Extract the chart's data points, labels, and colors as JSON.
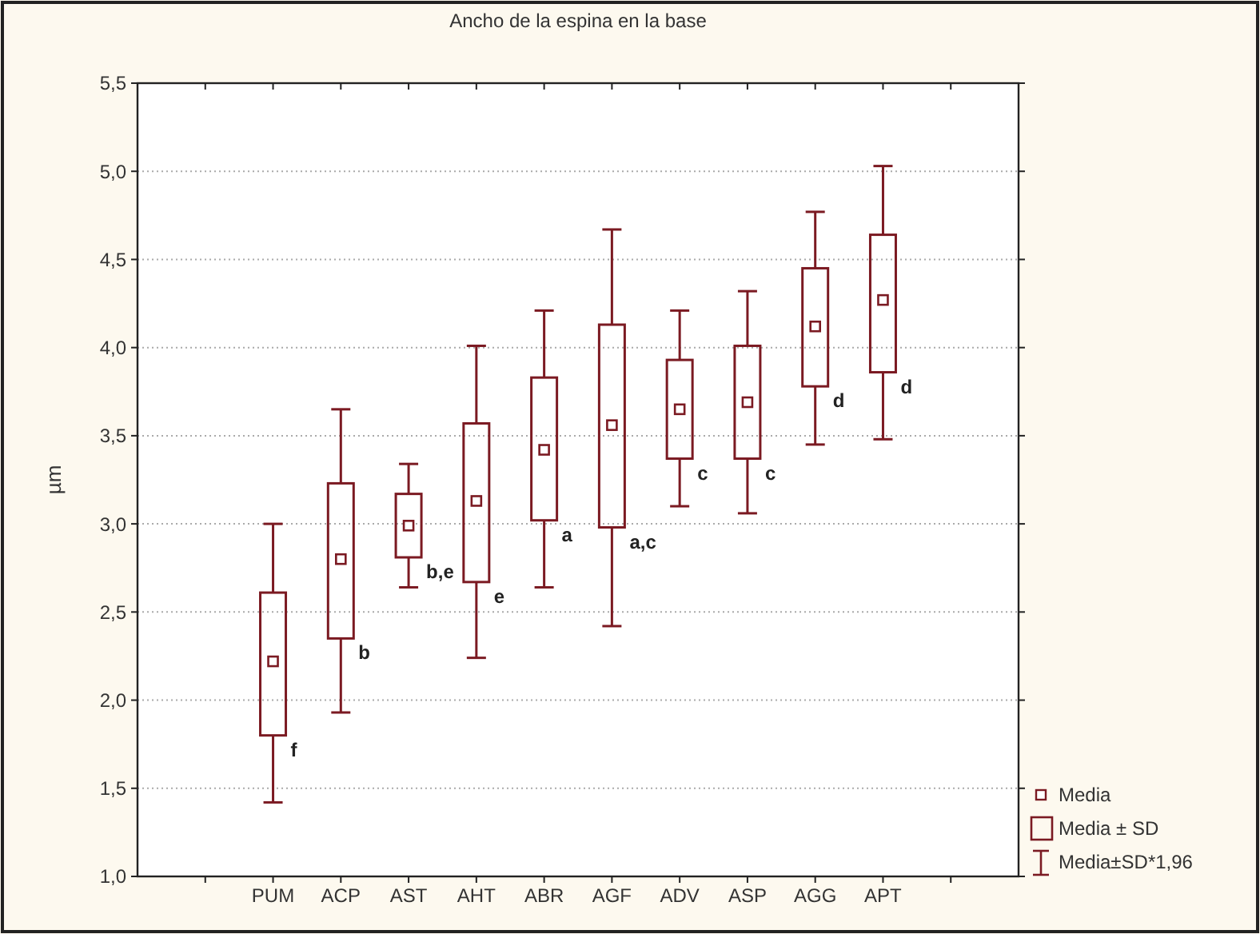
{
  "chart_data": {
    "type": "box",
    "title": "Ancho de la espina en la base",
    "ylabel": "µm",
    "categories": [
      "PUM",
      "ACP",
      "AST",
      "AHT",
      "ABR",
      "AGF",
      "ADV",
      "ASP",
      "AGG",
      "APT"
    ],
    "boxes": [
      {
        "low": 1.42,
        "q1": 1.8,
        "median": 2.22,
        "q3": 2.61,
        "high": 3.0
      },
      {
        "low": 1.93,
        "q1": 2.35,
        "median": 2.8,
        "q3": 3.23,
        "high": 3.65
      },
      {
        "low": 2.64,
        "q1": 2.81,
        "median": 2.99,
        "q3": 3.17,
        "high": 3.34
      },
      {
        "low": 2.24,
        "q1": 2.67,
        "median": 3.13,
        "q3": 3.57,
        "high": 4.01
      },
      {
        "low": 2.64,
        "q1": 3.02,
        "median": 3.42,
        "q3": 3.83,
        "high": 4.21
      },
      {
        "low": 2.42,
        "q1": 2.98,
        "median": 3.56,
        "q3": 4.13,
        "high": 4.67
      },
      {
        "low": 3.1,
        "q1": 3.37,
        "median": 3.65,
        "q3": 3.93,
        "high": 4.21
      },
      {
        "low": 3.06,
        "q1": 3.37,
        "median": 3.69,
        "q3": 4.01,
        "high": 4.32
      },
      {
        "low": 3.45,
        "q1": 3.78,
        "median": 4.12,
        "q3": 4.45,
        "high": 4.77
      },
      {
        "low": 3.48,
        "q1": 3.86,
        "median": 4.27,
        "q3": 4.64,
        "high": 5.03
      }
    ],
    "color": "#7b1a22",
    "ylim": [
      1.0,
      5.5
    ],
    "yticks": [
      {
        "value": 1.0,
        "label": "1,0"
      },
      {
        "value": 1.5,
        "label": "1,5"
      },
      {
        "value": 2.0,
        "label": "2,0"
      },
      {
        "value": 2.5,
        "label": "2,5"
      },
      {
        "value": 3.0,
        "label": "3,0"
      },
      {
        "value": 3.5,
        "label": "3,5"
      },
      {
        "value": 4.0,
        "label": "4,0"
      },
      {
        "value": 4.5,
        "label": "4,5"
      },
      {
        "value": 5.0,
        "label": "5,0"
      },
      {
        "value": 5.5,
        "label": "5,5"
      }
    ],
    "grid": "y",
    "annotations": [
      "Media",
      "Media ± SD",
      "Media±SD*1,96",
      {
        "text": "f",
        "x": "PUM",
        "y": 1.8
      },
      {
        "text": "b",
        "x": "ACP",
        "y": 2.35
      },
      {
        "text": "b,e",
        "x": "AST",
        "y": 2.81
      },
      {
        "text": "e",
        "x": "AHT",
        "y": 2.67
      },
      {
        "text": "a",
        "x": "ABR",
        "y": 3.02
      },
      {
        "text": "a,c",
        "x": "AGF",
        "y": 2.98
      },
      {
        "text": "c",
        "x": "ADV",
        "y": 3.37
      },
      {
        "text": "c",
        "x": "ASP",
        "y": 3.37
      },
      {
        "text": "d",
        "x": "AGG",
        "y": 3.78
      },
      {
        "text": "d",
        "x": "APT",
        "y": 3.86
      }
    ]
  }
}
